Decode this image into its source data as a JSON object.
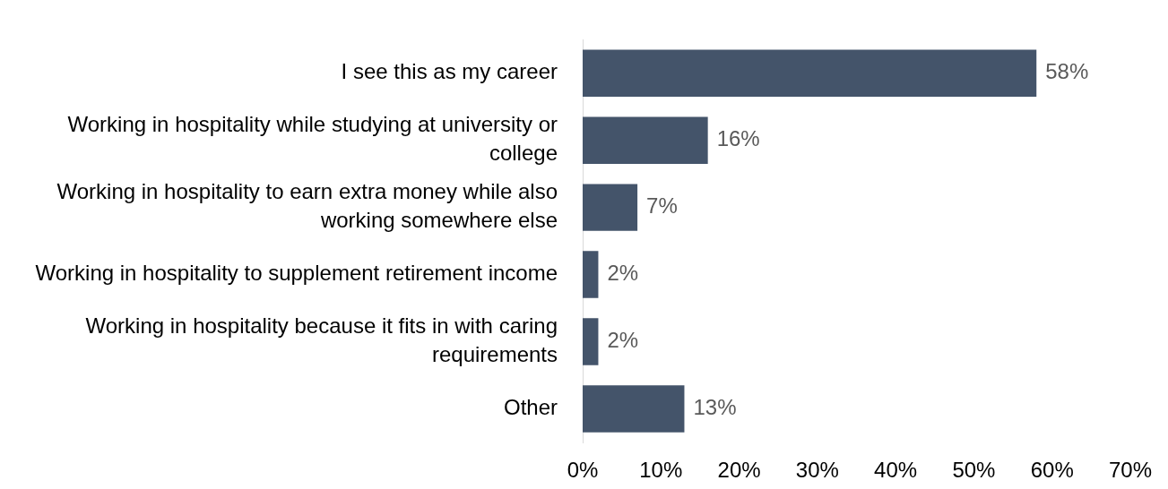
{
  "chart_data": {
    "type": "bar",
    "orientation": "horizontal",
    "categories": [
      "I see this as my career",
      "Working in hospitality while studying at university or college",
      "Working in hospitality to earn extra money while also working somewhere else",
      "Working in hospitality to supplement retirement income",
      "Working in hospitality because it fits in with caring requirements",
      "Other"
    ],
    "values": [
      58,
      16,
      7,
      2,
      2,
      13
    ],
    "color": "#44546a",
    "value_labels": [
      "58%",
      "16%",
      "7%",
      "2%",
      "2%",
      "13%"
    ],
    "xlim": [
      0,
      70
    ],
    "xticks": [
      {
        "value": 0,
        "label": "0%"
      },
      {
        "value": 10,
        "label": "10%"
      },
      {
        "value": 20,
        "label": "20%"
      },
      {
        "value": 30,
        "label": "30%"
      },
      {
        "value": 40,
        "label": "40%"
      },
      {
        "value": 50,
        "label": "50%"
      },
      {
        "value": 60,
        "label": "60%"
      },
      {
        "value": 70,
        "label": "70%"
      }
    ],
    "grid": false,
    "legend": false
  }
}
